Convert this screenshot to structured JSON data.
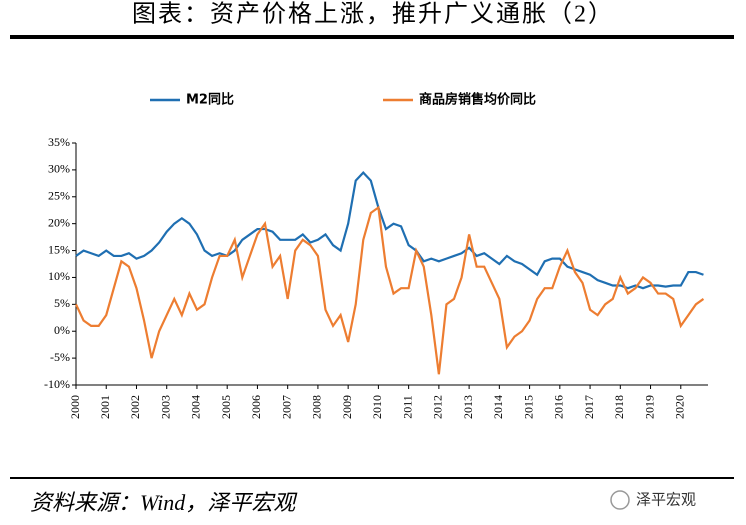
{
  "title": "图表：资产价格上涨，推升广义通胀（2）",
  "source": "资料来源：Wind，泽平宏观",
  "watermark": "泽平宏观",
  "chart_data": {
    "type": "line",
    "x": [
      2000,
      2000.25,
      2000.5,
      2000.75,
      2001,
      2001.25,
      2001.5,
      2001.75,
      2002,
      2002.25,
      2002.5,
      2002.75,
      2003,
      2003.25,
      2003.5,
      2003.75,
      2004,
      2004.25,
      2004.5,
      2004.75,
      2005,
      2005.25,
      2005.5,
      2005.75,
      2006,
      2006.25,
      2006.5,
      2006.75,
      2007,
      2007.25,
      2007.5,
      2007.75,
      2008,
      2008.25,
      2008.5,
      2008.75,
      2009,
      2009.25,
      2009.5,
      2009.75,
      2010,
      2010.25,
      2010.5,
      2010.75,
      2011,
      2011.25,
      2011.5,
      2011.75,
      2012,
      2012.25,
      2012.5,
      2012.75,
      2013,
      2013.25,
      2013.5,
      2013.75,
      2014,
      2014.25,
      2014.5,
      2014.75,
      2015,
      2015.25,
      2015.5,
      2015.75,
      2016,
      2016.25,
      2016.5,
      2016.75,
      2017,
      2017.25,
      2017.5,
      2017.75,
      2018,
      2018.25,
      2018.5,
      2018.75,
      2019,
      2019.25,
      2019.5,
      2019.75,
      2020,
      2020.25,
      2020.5,
      2020.75
    ],
    "series": [
      {
        "name": "M2同比",
        "color": "#1f6fb2",
        "values": [
          14,
          15,
          14.5,
          14,
          15,
          14,
          14,
          14.5,
          13.5,
          14,
          15,
          16.5,
          18.5,
          20,
          21,
          20,
          18,
          15,
          14,
          14.5,
          14,
          15,
          17,
          18,
          19,
          19,
          18.5,
          17,
          17,
          17,
          18,
          16.5,
          17,
          18,
          16,
          15,
          20,
          28,
          29.5,
          28,
          23,
          19,
          20,
          19.5,
          16,
          15,
          13,
          13.5,
          13,
          13.5,
          14,
          14.5,
          15.5,
          14,
          14.5,
          13.5,
          12.5,
          14,
          13,
          12.5,
          11.5,
          10.5,
          13,
          13.5,
          13.5,
          12,
          11.5,
          11,
          10.5,
          9.5,
          9,
          8.5,
          8.5,
          8,
          8.5,
          8,
          8.5,
          8.5,
          8.3,
          8.5,
          8.5,
          11,
          11,
          10.5
        ]
      },
      {
        "name": "商品房销售均价同比",
        "color": "#ed7d31",
        "values": [
          5,
          2,
          1,
          1,
          3,
          8,
          13,
          12,
          8,
          2,
          -5,
          0,
          3,
          6,
          3,
          7,
          4,
          5,
          10,
          14,
          14,
          17,
          10,
          14,
          18,
          20,
          12,
          14,
          6,
          15,
          17,
          16,
          14,
          4,
          1,
          3,
          -2,
          5,
          17,
          22,
          23,
          12,
          7,
          8,
          8,
          15,
          12,
          3,
          -8,
          5,
          6,
          10,
          18,
          12,
          12,
          9,
          6,
          -3,
          -1,
          0,
          2,
          6,
          8,
          8,
          12,
          15,
          11,
          9,
          4,
          3,
          5,
          6,
          10,
          7,
          8,
          10,
          9,
          7,
          7,
          6,
          1,
          3,
          5,
          6
        ]
      }
    ],
    "xlim": [
      2000,
      2020.9
    ],
    "xticks": [
      2000,
      2001,
      2002,
      2003,
      2004,
      2005,
      2006,
      2007,
      2008,
      2009,
      2010,
      2011,
      2012,
      2013,
      2014,
      2015,
      2016,
      2017,
      2018,
      2019,
      2020
    ],
    "ylim": [
      -10,
      35
    ],
    "yticks": [
      {
        "value": -10,
        "label": "-10%"
      },
      {
        "value": -5,
        "label": "-5%"
      },
      {
        "value": 0,
        "label": "0%"
      },
      {
        "value": 5,
        "label": "5%"
      },
      {
        "value": 10,
        "label": "10%"
      },
      {
        "value": 15,
        "label": "15%"
      },
      {
        "value": 20,
        "label": "20%"
      },
      {
        "value": 25,
        "label": "25%"
      },
      {
        "value": 30,
        "label": "30%"
      },
      {
        "value": 35,
        "label": "35%"
      }
    ]
  }
}
